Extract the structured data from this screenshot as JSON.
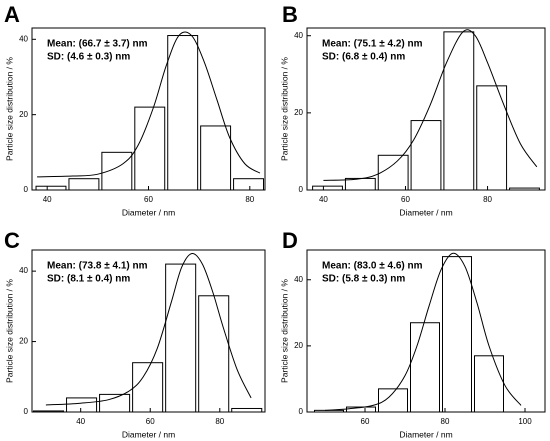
{
  "chart_data": [
    {
      "type": "histogram",
      "panel_label": "A",
      "annotations": [
        "Mean: (66.7 ± 3.7) nm",
        "SD: (4.6 ± 0.3) nm"
      ],
      "x_label": "Diameter / nm",
      "y_label": "Particle size distribution / %",
      "bins": [
        37.5,
        44,
        50.5,
        57,
        63.5,
        70,
        76.5,
        83
      ],
      "values": [
        1,
        3,
        10,
        22,
        41,
        17,
        3
      ],
      "fit": {
        "x": [
          38,
          45,
          50,
          55,
          58,
          61,
          63.5,
          66,
          68.5,
          71,
          73.5,
          76,
          79,
          82
        ],
        "y": [
          3.5,
          3.7,
          4.2,
          7,
          12,
          22,
          33,
          41,
          41,
          34,
          24,
          14,
          7,
          4.5
        ]
      },
      "xlim": [
        37,
        83
      ],
      "ylim": [
        0,
        43
      ],
      "xticks": [
        40,
        60,
        80
      ],
      "yticks": [
        0,
        20,
        40
      ]
    },
    {
      "type": "histogram",
      "panel_label": "B",
      "annotations": [
        "Mean: (75.1 ± 4.2) nm",
        "SD: (6.8 ± 0.4) nm"
      ],
      "x_label": "Diameter / nm",
      "y_label": "Particle size distribution / %",
      "bins": [
        37,
        45,
        53,
        61,
        69,
        77,
        85,
        93
      ],
      "values": [
        1,
        3,
        9,
        18,
        41,
        27,
        0.5
      ],
      "fit": {
        "x": [
          40,
          48,
          53,
          58,
          62,
          66,
          70,
          74,
          77,
          80,
          84,
          88,
          92
        ],
        "y": [
          2.5,
          2.8,
          4,
          7.5,
          13,
          22,
          33,
          41,
          40,
          33,
          22,
          12,
          6
        ]
      },
      "xlim": [
        36,
        94
      ],
      "ylim": [
        0,
        42
      ],
      "xticks": [
        40,
        60,
        80
      ],
      "yticks": [
        0,
        20,
        40
      ]
    },
    {
      "type": "histogram",
      "panel_label": "C",
      "annotations": [
        "Mean: (73.8 ± 4.1) nm",
        "SD: (8.1 ± 0.4) nm"
      ],
      "x_label": "Diameter / nm",
      "y_label": "Particle size distribution / %",
      "bins": [
        26,
        35.5,
        45,
        54.5,
        64,
        73.5,
        83,
        92.5
      ],
      "values": [
        0.3,
        4,
        5,
        14,
        42,
        33,
        1
      ],
      "fit": {
        "x": [
          30,
          40,
          48,
          54,
          58,
          62,
          66,
          69,
          72,
          75,
          78,
          81,
          85,
          89
        ],
        "y": [
          2,
          2.5,
          3.5,
          6,
          10,
          18,
          31,
          41,
          45,
          42,
          34,
          24,
          12,
          4
        ]
      },
      "xlim": [
        26,
        93
      ],
      "ylim": [
        0,
        46
      ],
      "xticks": [
        40,
        60,
        80
      ],
      "yticks": [
        0,
        20,
        40
      ]
    },
    {
      "type": "histogram",
      "panel_label": "D",
      "annotations": [
        "Mean: (83.0 ± 4.6) nm",
        "SD: (5.8 ± 0.3) nm"
      ],
      "x_label": "Diameter / nm",
      "y_label": "Particle size distribution / %",
      "bins": [
        47,
        55,
        63,
        71,
        79,
        87,
        95
      ],
      "values": [
        0.5,
        1.5,
        7,
        27,
        47,
        17
      ],
      "fit": {
        "x": [
          50,
          56,
          62,
          66,
          70,
          73,
          76,
          79,
          82,
          85,
          88,
          91,
          95,
          99
        ],
        "y": [
          0.5,
          1,
          2,
          4.5,
          11,
          20,
          32,
          43,
          48,
          44,
          33,
          20,
          8,
          2
        ]
      },
      "xlim": [
        45.5,
        105
      ],
      "ylim": [
        0,
        49
      ],
      "xticks": [
        60,
        80,
        100
      ],
      "yticks": [
        0,
        20,
        40
      ]
    }
  ]
}
